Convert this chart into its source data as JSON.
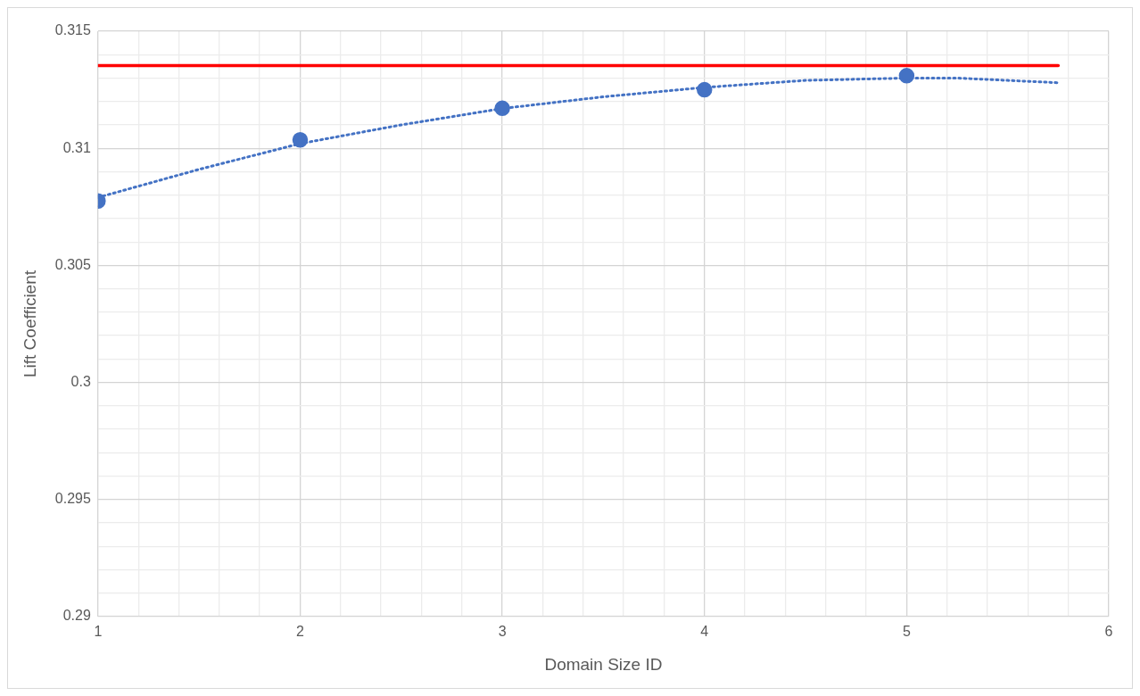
{
  "chart_data": {
    "type": "scatter",
    "xlabel": "Domain Size ID",
    "ylabel": "Lift Coefficient",
    "xlim": [
      1,
      6
    ],
    "ylim": [
      0.29,
      0.315
    ],
    "xticks": [
      1,
      {
        "value": 1.2,
        "label": null
      },
      {
        "value": 1.4,
        "label": null
      },
      {
        "value": 1.6,
        "label": null
      },
      {
        "value": 1.8,
        "label": null
      },
      2,
      {
        "value": 2.2,
        "label": null
      },
      {
        "value": 2.4,
        "label": null
      },
      {
        "value": 2.6,
        "label": null
      },
      {
        "value": 2.8,
        "label": null
      },
      3,
      {
        "value": 3.2,
        "label": null
      },
      {
        "value": 3.4,
        "label": null
      },
      {
        "value": 3.6,
        "label": null
      },
      {
        "value": 3.8,
        "label": null
      },
      4,
      {
        "value": 4.2,
        "label": null
      },
      {
        "value": 4.4,
        "label": null
      },
      {
        "value": 4.6,
        "label": null
      },
      {
        "value": 4.8,
        "label": null
      },
      5,
      {
        "value": 5.2,
        "label": null
      },
      {
        "value": 5.4,
        "label": null
      },
      {
        "value": 5.6,
        "label": null
      },
      {
        "value": 5.8,
        "label": null
      },
      6
    ],
    "yticks": [
      0.29,
      {
        "value": 0.291,
        "label": null
      },
      {
        "value": 0.292,
        "label": null
      },
      {
        "value": 0.293,
        "label": null
      },
      {
        "value": 0.294,
        "label": null
      },
      0.295,
      {
        "value": 0.296,
        "label": null
      },
      {
        "value": 0.297,
        "label": null
      },
      {
        "value": 0.298,
        "label": null
      },
      {
        "value": 0.299,
        "label": null
      },
      {
        "value": 0.3,
        "label": "0.3"
      },
      {
        "value": 0.301,
        "label": null
      },
      {
        "value": 0.302,
        "label": null
      },
      {
        "value": 0.303,
        "label": null
      },
      {
        "value": 0.304,
        "label": null
      },
      0.305,
      {
        "value": 0.306,
        "label": null
      },
      {
        "value": 0.307,
        "label": null
      },
      {
        "value": 0.308,
        "label": null
      },
      {
        "value": 0.309,
        "label": null
      },
      {
        "value": 0.31,
        "label": "0.31"
      },
      {
        "value": 0.311,
        "label": null
      },
      {
        "value": 0.312,
        "label": null
      },
      {
        "value": 0.313,
        "label": null
      },
      {
        "value": 0.314,
        "label": null
      },
      0.315
    ],
    "grid": true,
    "legend": false,
    "series": [
      {
        "type": "scatter",
        "color": "#4472c4",
        "marker": "circle",
        "x": [
          1,
          2,
          3,
          4,
          5
        ],
        "values": [
          0.30775,
          0.31036,
          0.31171,
          0.3125,
          0.3131
        ]
      },
      {
        "type": "line",
        "color": "#4472c4",
        "marker": "none",
        "line_style": "dotted",
        "x": [
          1,
          1.5,
          2,
          2.5,
          3,
          3.5,
          4,
          4.5,
          5,
          5.25,
          5.5,
          5.75
        ],
        "values": [
          0.3079,
          0.3091,
          0.3102,
          0.311,
          0.3117,
          0.3122,
          0.3126,
          0.3129,
          0.313,
          0.313,
          0.3129,
          0.3128
        ]
      },
      {
        "type": "line",
        "color": "#ff0000",
        "marker": "none",
        "line_style": "solid",
        "x": [
          1,
          5.75
        ],
        "values": [
          0.31353,
          0.31353
        ]
      }
    ]
  }
}
